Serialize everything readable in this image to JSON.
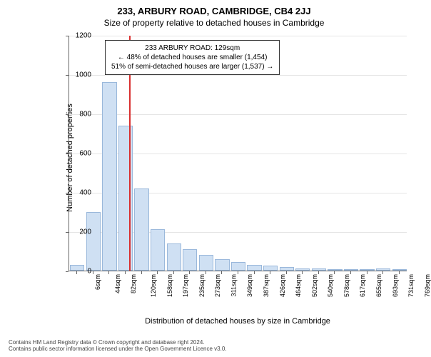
{
  "title": "233, ARBURY ROAD, CAMBRIDGE, CB4 2JJ",
  "subtitle": "Size of property relative to detached houses in Cambridge",
  "y_axis_label": "Number of detached properties",
  "x_axis_label": "Distribution of detached houses by size in Cambridge",
  "y_axis": {
    "min": 0,
    "max": 1200,
    "ticks": [
      0,
      200,
      400,
      600,
      800,
      1000,
      1200
    ]
  },
  "x_categories": [
    "6sqm",
    "44sqm",
    "82sqm",
    "120sqm",
    "158sqm",
    "197sqm",
    "235sqm",
    "273sqm",
    "311sqm",
    "349sqm",
    "387sqm",
    "426sqm",
    "464sqm",
    "502sqm",
    "540sqm",
    "578sqm",
    "617sqm",
    "655sqm",
    "693sqm",
    "731sqm",
    "769sqm"
  ],
  "bar_values": [
    30,
    300,
    960,
    740,
    420,
    210,
    140,
    110,
    80,
    60,
    45,
    30,
    25,
    20,
    10,
    10,
    8,
    8,
    5,
    10,
    5
  ],
  "bar_fill": "#cfe0f3",
  "bar_border": "#9ab8db",
  "reference_line": {
    "x_value": 129,
    "color": "#d93030"
  },
  "annotation": {
    "line1": "233 ARBURY ROAD: 129sqm",
    "line2": "← 48% of detached houses are smaller (1,454)",
    "line3": "51% of semi-detached houses are larger (1,537) →"
  },
  "footer_line1": "Contains HM Land Registry data © Crown copyright and database right 2024.",
  "footer_line2": "Contains public sector information licensed under the Open Government Licence v3.0.",
  "styling": {
    "title_fontsize": 13,
    "subtitle_fontsize": 12,
    "axis_label_fontsize": 11,
    "tick_fontsize": 10,
    "background": "#ffffff",
    "grid_color": "#e5e5e5",
    "axis_color": "#666666"
  }
}
